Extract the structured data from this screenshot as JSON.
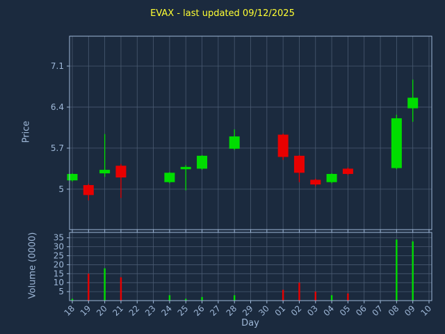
{
  "colors": {
    "background": "#1b2a3e",
    "grid": "#4a5b72",
    "border": "#9fb8d8",
    "text": "#9fb8d8",
    "title": "#ffff33",
    "up": "#00dd00",
    "down": "#e80000"
  },
  "chart_data": {
    "type": "candlestick",
    "title": "EVAX - last updated 09/12/2025",
    "xlabel": "Day",
    "ylabel": "Price",
    "y2label": "Volume (0000)",
    "legend": "none",
    "grid": "on",
    "x_categories": [
      "18",
      "19",
      "20",
      "21",
      "22",
      "23",
      "24",
      "25",
      "26",
      "27",
      "28",
      "29",
      "30",
      "01",
      "02",
      "03",
      "04",
      "05",
      "06",
      "07",
      "08",
      "09",
      "10"
    ],
    "price_tick_labels": [
      "5",
      "5.7",
      "6.4",
      "7.1"
    ],
    "price_tick_values": [
      5,
      5.7,
      6.4,
      7.1
    ],
    "price_range": [
      4.31,
      7.61
    ],
    "volume_tick_values": [
      5,
      10,
      15,
      20,
      25,
      30,
      35
    ],
    "volume_range": [
      0,
      38
    ],
    "candles": [
      {
        "day": "18",
        "open": 5.15,
        "high": 5.27,
        "low": 5.13,
        "close": 5.26,
        "volume": 1,
        "direction": "up"
      },
      {
        "day": "19",
        "open": 5.07,
        "high": 5.09,
        "low": 4.81,
        "close": 4.9,
        "volume": 15,
        "direction": "down"
      },
      {
        "day": "20",
        "open": 5.27,
        "high": 5.94,
        "low": 5.21,
        "close": 5.33,
        "volume": 18,
        "direction": "up"
      },
      {
        "day": "21",
        "open": 5.4,
        "high": 5.43,
        "low": 4.85,
        "close": 5.2,
        "volume": 13,
        "direction": "down"
      },
      {
        "day": "24",
        "open": 5.12,
        "high": 5.29,
        "low": 5.1,
        "close": 5.28,
        "volume": 3,
        "direction": "up"
      },
      {
        "day": "25",
        "open": 5.34,
        "high": 5.41,
        "low": 4.98,
        "close": 5.38,
        "volume": 1,
        "direction": "up"
      },
      {
        "day": "26",
        "open": 5.35,
        "high": 5.58,
        "low": 5.33,
        "close": 5.57,
        "volume": 2,
        "direction": "up"
      },
      {
        "day": "28",
        "open": 5.69,
        "high": 6.02,
        "low": 5.67,
        "close": 5.9,
        "volume": 3,
        "direction": "up"
      },
      {
        "day": "01",
        "open": 5.93,
        "high": 5.95,
        "low": 5.5,
        "close": 5.55,
        "volume": 6,
        "direction": "down"
      },
      {
        "day": "02",
        "open": 5.57,
        "high": 5.58,
        "low": 5.12,
        "close": 5.28,
        "volume": 10,
        "direction": "down"
      },
      {
        "day": "03",
        "open": 5.16,
        "high": 5.18,
        "low": 5.05,
        "close": 5.08,
        "volume": 5,
        "direction": "down"
      },
      {
        "day": "04",
        "open": 5.12,
        "high": 5.27,
        "low": 5.1,
        "close": 5.26,
        "volume": 3,
        "direction": "up"
      },
      {
        "day": "05",
        "open": 5.35,
        "high": 5.37,
        "low": 5.24,
        "close": 5.26,
        "volume": 4,
        "direction": "down"
      },
      {
        "day": "08",
        "open": 5.36,
        "high": 6.27,
        "low": 5.34,
        "close": 6.21,
        "volume": 34,
        "direction": "up"
      },
      {
        "day": "09",
        "open": 6.38,
        "high": 6.87,
        "low": 6.15,
        "close": 6.56,
        "volume": 33,
        "direction": "up"
      }
    ]
  }
}
